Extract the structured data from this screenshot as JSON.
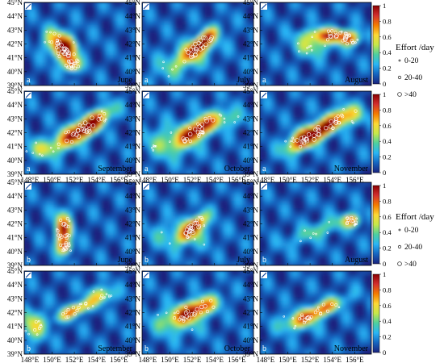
{
  "chart_data": {
    "type": "heatmap",
    "xlabel": "",
    "ylabel": "",
    "x_tick_labels": [
      "148°E",
      "150°E",
      "152°E",
      "154°E",
      "156°E"
    ],
    "y_tick_labels": [
      "39°N",
      "40°N",
      "41°N",
      "42°N",
      "43°N",
      "44°N",
      "45°N"
    ],
    "xlim": [
      147.5,
      157.5
    ],
    "ylim": [
      39,
      45
    ],
    "colorbar": {
      "ticks": [
        "0",
        "0.2",
        "0.4",
        "0.6",
        "0.8",
        "1"
      ],
      "range": [
        0,
        1
      ],
      "colors": [
        "#1a237e",
        "#1565c0",
        "#29b6f6",
        "#4dd0a0",
        "#c6e84a",
        "#fdd835",
        "#f57c00",
        "#d32f2f",
        "#8b0000"
      ]
    },
    "legend": {
      "title": "Effort /day",
      "entries": [
        "0-20",
        "20-40",
        ">40"
      ]
    },
    "panels": [
      {
        "group": "a",
        "month": "June",
        "hot": [
          {
            "x": 151.2,
            "y": 41.6,
            "sx": 0.7,
            "sy": 0.55,
            "v": 1.0
          },
          {
            "x": 151.8,
            "y": 40.5,
            "sx": 0.5,
            "sy": 0.35,
            "v": 0.8
          },
          {
            "x": 150.3,
            "y": 42.3,
            "sx": 0.8,
            "sy": 0.6,
            "v": 0.45
          }
        ]
      },
      {
        "group": "a",
        "month": "July",
        "hot": [
          {
            "x": 152.8,
            "y": 42.0,
            "sx": 1.1,
            "sy": 0.35,
            "a": 0.62,
            "v": 1.0
          },
          {
            "x": 151.5,
            "y": 41.0,
            "sx": 2.0,
            "sy": 0.7,
            "a": 0.4,
            "v": 0.35
          }
        ]
      },
      {
        "group": "a",
        "month": "August",
        "hot": [
          {
            "x": 153.8,
            "y": 42.6,
            "sx": 1.5,
            "sy": 0.35,
            "v": 0.75
          },
          {
            "x": 155.6,
            "y": 42.3,
            "sx": 0.6,
            "sy": 0.3,
            "v": 0.55
          },
          {
            "x": 152.2,
            "y": 41.8,
            "sx": 1.2,
            "sy": 0.5,
            "v": 0.35
          }
        ]
      },
      {
        "group": "a",
        "month": "September",
        "hot": [
          {
            "x": 153.5,
            "y": 42.6,
            "sx": 1.4,
            "sy": 0.4,
            "a": 0.5,
            "v": 0.95
          },
          {
            "x": 151.8,
            "y": 41.8,
            "sx": 1.5,
            "sy": 0.5,
            "a": 0.4,
            "v": 0.55
          },
          {
            "x": 149.0,
            "y": 40.8,
            "sx": 1.2,
            "sy": 0.5,
            "v": 0.3
          }
        ]
      },
      {
        "group": "a",
        "month": "October",
        "hot": [
          {
            "x": 152.5,
            "y": 42.2,
            "sx": 1.2,
            "sy": 0.45,
            "a": 0.45,
            "v": 1.0
          },
          {
            "x": 150.0,
            "y": 41.3,
            "sx": 1.5,
            "sy": 0.8,
            "v": 0.35
          },
          {
            "x": 155.0,
            "y": 43.0,
            "sx": 1.2,
            "sy": 0.5,
            "v": 0.3
          }
        ]
      },
      {
        "group": "a",
        "month": "November",
        "hot": [
          {
            "x": 153.0,
            "y": 42.2,
            "sx": 1.6,
            "sy": 0.4,
            "a": 0.45,
            "v": 1.0
          },
          {
            "x": 151.3,
            "y": 41.5,
            "sx": 1.2,
            "sy": 0.5,
            "a": 0.4,
            "v": 0.55
          },
          {
            "x": 155.5,
            "y": 43.2,
            "sx": 1.0,
            "sy": 0.5,
            "v": 0.4
          }
        ]
      },
      {
        "group": "b",
        "month": "June",
        "hot": [
          {
            "x": 151.0,
            "y": 41.5,
            "sx": 0.5,
            "sy": 0.9,
            "v": 0.85
          },
          {
            "x": 151.2,
            "y": 40.3,
            "sx": 0.4,
            "sy": 0.3,
            "v": 0.55
          }
        ]
      },
      {
        "group": "b",
        "month": "July",
        "hot": [
          {
            "x": 152.2,
            "y": 41.8,
            "sx": 0.9,
            "sy": 0.35,
            "a": 0.62,
            "v": 0.95
          },
          {
            "x": 151.0,
            "y": 41.2,
            "sx": 1.8,
            "sy": 0.7,
            "v": 0.3
          }
        ]
      },
      {
        "group": "b",
        "month": "August",
        "hot": [
          {
            "x": 155.8,
            "y": 42.2,
            "sx": 0.5,
            "sy": 0.3,
            "v": 0.65
          },
          {
            "x": 153.0,
            "y": 41.6,
            "sx": 2.2,
            "sy": 0.4,
            "a": 0.3,
            "v": 0.3
          }
        ]
      },
      {
        "group": "b",
        "month": "September",
        "hot": [
          {
            "x": 152.2,
            "y": 42.2,
            "sx": 1.3,
            "sy": 0.3,
            "a": 0.35,
            "v": 0.7
          },
          {
            "x": 148.3,
            "y": 41.0,
            "sx": 0.8,
            "sy": 0.8,
            "v": 0.45
          },
          {
            "x": 154.5,
            "y": 43.3,
            "sx": 0.8,
            "sy": 0.4,
            "v": 0.45
          }
        ]
      },
      {
        "group": "b",
        "month": "October",
        "hot": [
          {
            "x": 152.3,
            "y": 42.2,
            "sx": 1.4,
            "sy": 0.45,
            "a": 0.3,
            "v": 0.9
          },
          {
            "x": 150.5,
            "y": 41.3,
            "sx": 1.5,
            "sy": 0.7,
            "v": 0.3
          }
        ]
      },
      {
        "group": "b",
        "month": "November",
        "hot": [
          {
            "x": 152.8,
            "y": 42.1,
            "sx": 1.6,
            "sy": 0.35,
            "a": 0.35,
            "v": 0.75
          },
          {
            "x": 150.8,
            "y": 41.3,
            "sx": 1.2,
            "sy": 0.5,
            "v": 0.3
          }
        ]
      }
    ]
  }
}
